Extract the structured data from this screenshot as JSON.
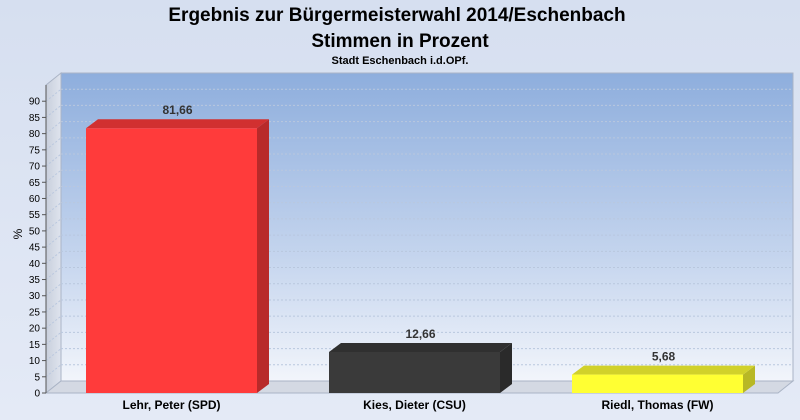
{
  "chart_data": {
    "type": "bar",
    "title": "Ergebnis zur Bürgermeisterwahl 2014/Eschenbach",
    "subtitle_line": "Stimmen in Prozent",
    "subtitle": "Stadt Eschenbach i.d.OPf.",
    "ylabel": "%",
    "xlabel": "",
    "ylim": [
      0,
      95
    ],
    "yticks": [
      "0",
      "5",
      "10",
      "15",
      "20",
      "25",
      "30",
      "35",
      "40",
      "45",
      "50",
      "55",
      "60",
      "65",
      "70",
      "75",
      "80",
      "85",
      "90"
    ],
    "categories": [
      "Lehr, Peter (SPD)",
      "Kies, Dieter (CSU)",
      "Riedl, Thomas (FW)"
    ],
    "values": [
      81.66,
      12.66,
      5.68
    ],
    "value_labels": [
      "81,66",
      "12,66",
      "5,68"
    ],
    "colors": [
      "#ff3b3b",
      "#3a3a3a",
      "#ffff33"
    ],
    "grid": true,
    "legend": "none"
  }
}
